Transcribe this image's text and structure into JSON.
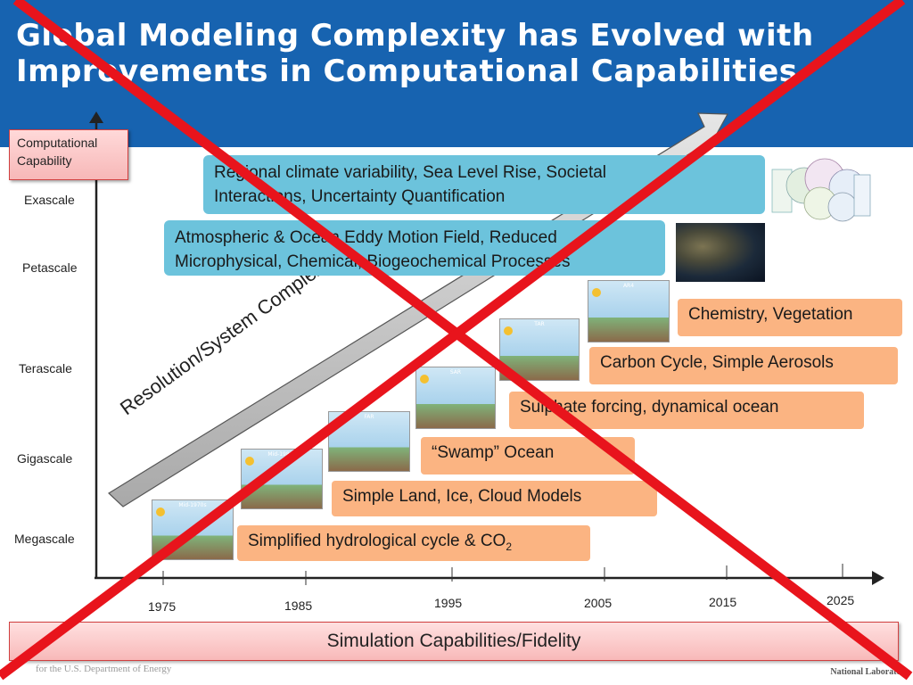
{
  "slide": {
    "title": "Global Modeling Complexity has Evolved with\nImprovements in Computational Capabilities",
    "y_axis_label": "Computational\nCapability",
    "x_axis_label": "Simulation Capabilities/Fidelity",
    "arrow_label": "Resolution/System Complexity",
    "footer": "for the U.S. Department of Energy",
    "logo_text": "National Laboratory"
  },
  "y_levels": [
    "Exascale",
    "Petascale",
    "Terascale",
    "Gigascale",
    "Megascale"
  ],
  "x_years": [
    "1975",
    "1985",
    "1995",
    "2005",
    "2015",
    "2025"
  ],
  "blue_boxes": [
    "Regional climate variability, Sea Level Rise, Societal\nInteractions, Uncertainty Quantification",
    "Atmospheric & Ocean Eddy Motion Field, Reduced\nMicrophysical, Chemical, Biogeochemical Processes"
  ],
  "orange_boxes": [
    "Chemistry, Vegetation",
    "Carbon Cycle, Simple Aerosols",
    "Sulphate forcing, dynamical ocean",
    "“Swamp” Ocean",
    "Simple Land, Ice, Cloud Models",
    "Simplified hydrological cycle & CO",
    "2"
  ],
  "thumbnails": [
    "Mid-1970s",
    "Mid-1980s",
    "FAR",
    "SAR",
    "TAR",
    "AR4"
  ],
  "colors": {
    "header": "#1763b0",
    "blue_box": "#6cc3dc",
    "orange_box": "#fbb482",
    "cross_out": "#e8141c"
  }
}
